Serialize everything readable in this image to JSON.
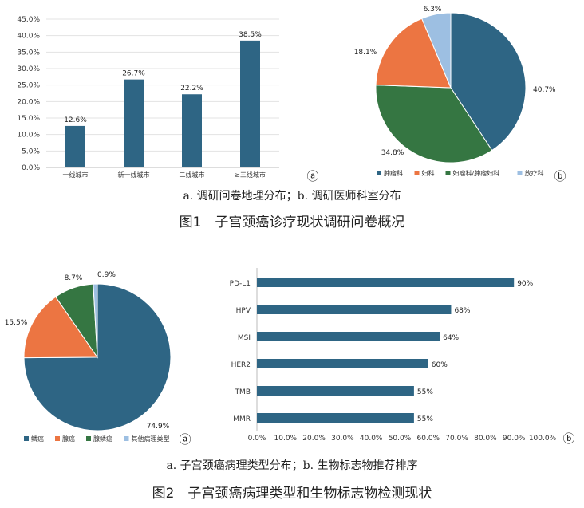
{
  "figure1": {
    "chart_a": {
      "type": "bar",
      "categories": [
        "一线城市",
        "新一线城市",
        "二线城市",
        "≥三线城市"
      ],
      "values": [
        12.6,
        26.7,
        22.2,
        38.5
      ],
      "value_labels": [
        "12.6%",
        "26.7%",
        "22.2%",
        "38.5%"
      ],
      "yticks": [
        "0.0%",
        "5.0%",
        "10.0%",
        "15.0%",
        "20.0%",
        "25.0%",
        "30.0%",
        "35.0%",
        "40.0%",
        "45.0%"
      ],
      "ylim": [
        0,
        45
      ],
      "color": "#2e6584",
      "marker": "ⓐ"
    },
    "chart_b": {
      "type": "pie",
      "slices": [
        {
          "name": "肿瘤科",
          "value": 40.7,
          "label": "40.7%",
          "color": "#2e6584"
        },
        {
          "name": "妇瘤科/肿瘤妇科",
          "value": 34.8,
          "label": "34.8%",
          "color": "#357642"
        },
        {
          "name": "妇科",
          "value": 18.1,
          "label": "18.1%",
          "color": "#ec7542"
        },
        {
          "name": "放疗科",
          "value": 6.3,
          "label": "6.3%",
          "color": "#9dbfe2"
        }
      ],
      "legend": [
        "肿瘤科",
        "妇科",
        "妇瘤科/肿瘤妇科",
        "放疗科"
      ],
      "marker": "ⓑ"
    },
    "subcaption": "a. 调研问卷地理分布；b. 调研医师科室分布",
    "caption": "图1　子宫颈癌诊疗现状调研问卷概况"
  },
  "figure2": {
    "chart_a": {
      "type": "pie",
      "slices": [
        {
          "name": "鳞癌",
          "value": 74.9,
          "label": "74.9%",
          "color": "#2e6584"
        },
        {
          "name": "腺癌",
          "value": 15.5,
          "label": "15.5%",
          "color": "#ec7542"
        },
        {
          "name": "腺鳞癌",
          "value": 8.7,
          "label": "8.7%",
          "color": "#357642"
        },
        {
          "name": "其他病理类型",
          "value": 0.9,
          "label": "0.9%",
          "color": "#9dbfe2"
        }
      ],
      "legend": [
        "鳞癌",
        "腺癌",
        "腺鳞癌",
        "其他病理类型"
      ],
      "marker": "ⓐ"
    },
    "chart_b": {
      "type": "bar",
      "orientation": "horizontal",
      "categories": [
        "PD-L1",
        "HPV",
        "MSI",
        "HER2",
        "TMB",
        "MMR"
      ],
      "values": [
        90,
        68,
        64,
        60,
        55,
        55
      ],
      "value_labels": [
        "90%",
        "68%",
        "64%",
        "60%",
        "55%",
        "55%"
      ],
      "xticks": [
        "0.0%",
        "10.0%",
        "20.0%",
        "30.0%",
        "40.0%",
        "50.0%",
        "60.0%",
        "70.0%",
        "80.0%",
        "90.0%",
        "100.0%"
      ],
      "xlim": [
        0,
        100
      ],
      "color": "#2e6584",
      "marker": "ⓑ"
    },
    "subcaption": "a. 子宫颈癌病理类型分布；b. 生物标志物推荐排序",
    "caption": "图2　子宫颈癌病理类型和生物标志物检测现状"
  }
}
